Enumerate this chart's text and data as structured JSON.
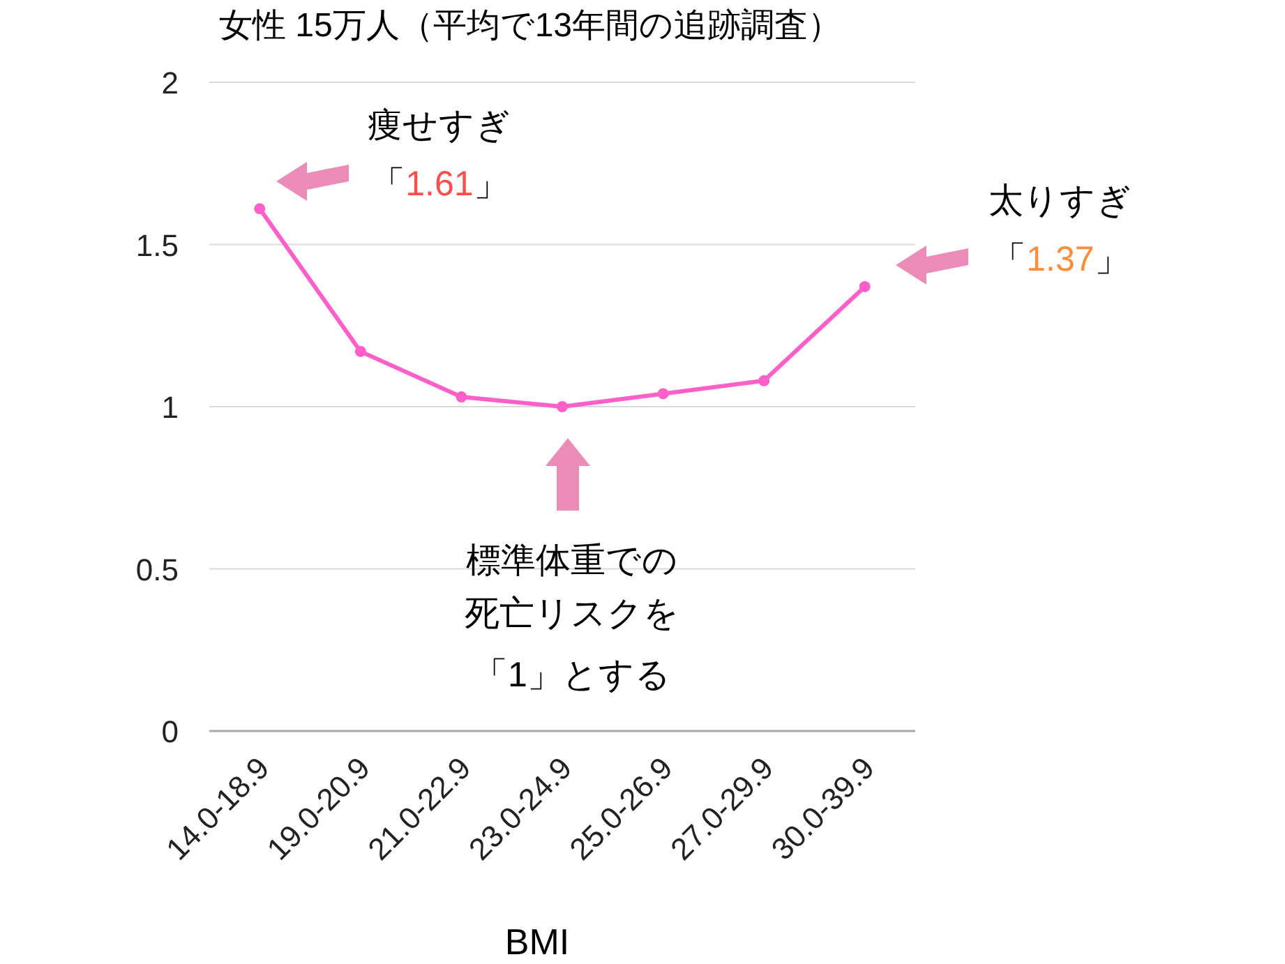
{
  "chart_data": {
    "type": "line",
    "title": "女性 15万人（平均で13年間の追跡調査）",
    "xlabel": "BMI",
    "categories": [
      "14.0-18.9",
      "19.0-20.9",
      "21.0-22.9",
      "23.0-24.9",
      "25.0-26.9",
      "27.0-29.9",
      "30.0-39.9"
    ],
    "series": [
      {
        "color": "#ff5fc8",
        "values": [
          1.61,
          1.17,
          1.03,
          1.0,
          1.04,
          1.08,
          1.37
        ]
      }
    ],
    "ylim": [
      0,
      2
    ],
    "yticks": [
      0,
      0.5,
      1,
      1.5,
      2
    ],
    "grid": "y",
    "marker": "circle",
    "line_style": "solid",
    "annotations": [
      "痩せすぎ",
      "「1.61」",
      "太りすぎ",
      "「1.37」",
      "標準体重での",
      "死亡リスクを",
      "「1」とする"
    ]
  }
}
